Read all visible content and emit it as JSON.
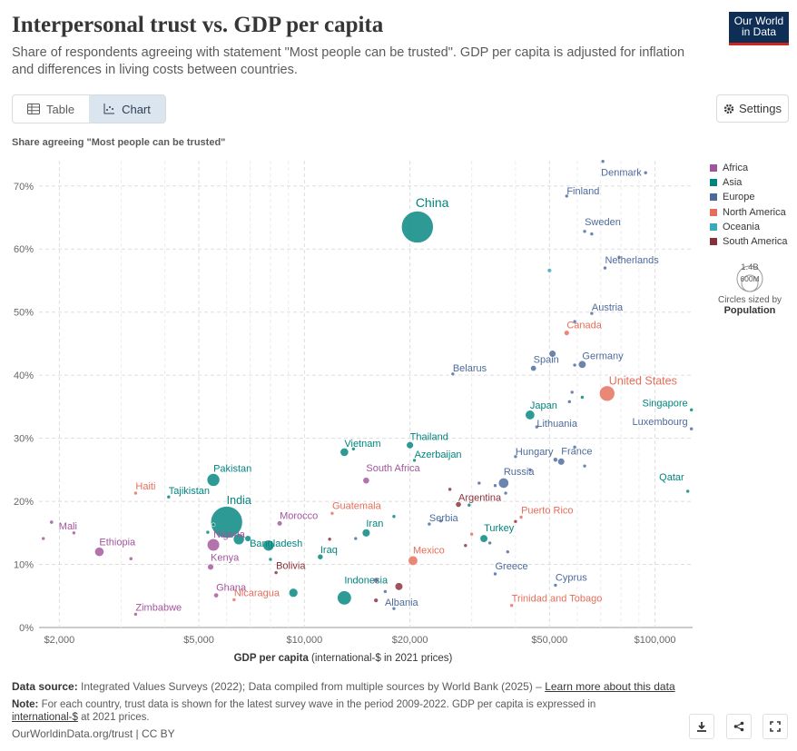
{
  "header": {
    "title": "Interpersonal trust vs. GDP per capita",
    "subtitle": "Share of respondents agreeing with statement \"Most people can be trusted\". GDP per capita is adjusted for inflation and differences in living costs between countries.",
    "logo_line1": "Our World",
    "logo_line2": "in Data"
  },
  "tabs": {
    "table_label": "Table",
    "chart_label": "Chart",
    "active": "chart"
  },
  "settings_label": "Settings",
  "icons": {
    "table": "table-icon",
    "chart": "chart-icon",
    "settings": "gear-icon",
    "download": "download-icon",
    "share": "share-icon",
    "fullscreen": "fullscreen-icon"
  },
  "colors": {
    "Africa": "#a2559c",
    "Asia": "#00847e",
    "Europe": "#4c6a9c",
    "North America": "#e56e5a",
    "Oceania": "#38aaba",
    "South America": "#883039"
  },
  "size_legend": {
    "big": "1.4B",
    "small": "600M",
    "caption": "Circles sized by",
    "caption_bold": "Population"
  },
  "chart_data": {
    "type": "scatter",
    "title": "Interpersonal trust vs. GDP per capita",
    "ylabel": "Share agreeing \"Most people can be trusted\"",
    "xlabel": "GDP per capita",
    "xlabel_suffix": "(international-$ in 2021 prices)",
    "x_scale": "log",
    "xlim": [
      1750,
      128000
    ],
    "ylim": [
      0,
      74
    ],
    "x_ticks": [
      {
        "value": 2000,
        "label": "$2,000"
      },
      {
        "value": 5000,
        "label": "$5,000"
      },
      {
        "value": 10000,
        "label": "$10,000"
      },
      {
        "value": 20000,
        "label": "$20,000"
      },
      {
        "value": 50000,
        "label": "$50,000"
      },
      {
        "value": 100000,
        "label": "$100,000"
      }
    ],
    "y_ticks": [
      {
        "value": 0,
        "label": "0%"
      },
      {
        "value": 10,
        "label": "10%"
      },
      {
        "value": 20,
        "label": "20%"
      },
      {
        "value": 30,
        "label": "30%"
      },
      {
        "value": 40,
        "label": "40%"
      },
      {
        "value": 50,
        "label": "50%"
      },
      {
        "value": 60,
        "label": "60%"
      },
      {
        "value": 70,
        "label": "70%"
      }
    ],
    "x_minor_gridlines": [
      3000,
      4000,
      6000,
      7000,
      8000,
      9000,
      30000,
      40000,
      60000,
      70000,
      80000,
      90000
    ],
    "grid": true,
    "legend_position": "right",
    "legend": [
      "Africa",
      "Asia",
      "Europe",
      "North America",
      "Oceania",
      "South America"
    ],
    "points": [
      {
        "name": "Denmark",
        "x": 71000,
        "y": 73.9,
        "region": "Europe",
        "pop": 5.9,
        "label": "Denmark",
        "lx": -2,
        "ly": 16,
        "anchor": "start"
      },
      {
        "name": "Norway",
        "x": 94000,
        "y": 72.1,
        "region": "Europe",
        "pop": 5.4
      },
      {
        "name": "Finland",
        "x": 56000,
        "y": 68.4,
        "region": "Europe",
        "pop": 5.5,
        "label": "Finland",
        "lx": 0,
        "ly": -2,
        "anchor": "start"
      },
      {
        "name": "China",
        "x": 21000,
        "y": 63.5,
        "region": "Asia",
        "pop": 1412,
        "label": "China",
        "lx": -2,
        "ly": -22,
        "anchor": "start",
        "size": 14
      },
      {
        "name": "Sweden",
        "x": 63000,
        "y": 62.8,
        "region": "Europe",
        "pop": 10.5,
        "label": "Sweden",
        "lx": 0,
        "ly": -7,
        "anchor": "start"
      },
      {
        "name": "Norway2",
        "x": 66000,
        "y": 62.4,
        "region": "Europe",
        "pop": 2
      },
      {
        "name": "Australia",
        "x": 50000,
        "y": 56.6,
        "region": "Oceania",
        "pop": 26
      },
      {
        "name": "Netherlands",
        "x": 72000,
        "y": 57,
        "region": "Europe",
        "pop": 17.6,
        "label": "Netherlands",
        "lx": 0,
        "ly": -5,
        "anchor": "start"
      },
      {
        "name": "Switzerland",
        "x": 79000,
        "y": 58.7,
        "region": "Europe",
        "pop": 8.7
      },
      {
        "name": "Austria",
        "x": 66000,
        "y": 49.8,
        "region": "Europe",
        "pop": 9,
        "label": "Austria",
        "lx": 0,
        "ly": -3,
        "anchor": "start"
      },
      {
        "name": "Iceland",
        "x": 59000,
        "y": 48.5,
        "region": "Europe",
        "pop": 2
      },
      {
        "name": "Canada",
        "x": 56000,
        "y": 46.7,
        "region": "North America",
        "pop": 38,
        "label": "Canada",
        "lx": 0,
        "ly": -5,
        "anchor": "start"
      },
      {
        "name": "United Kingdom",
        "x": 51000,
        "y": 43.4,
        "region": "Europe",
        "pop": 67
      },
      {
        "name": "Germany",
        "x": 62000,
        "y": 41.7,
        "region": "Europe",
        "pop": 83,
        "label": "Germany",
        "lx": 0,
        "ly": -6,
        "anchor": "start"
      },
      {
        "name": "Ireland2",
        "x": 59000,
        "y": 41.6,
        "region": "Europe",
        "pop": 5
      },
      {
        "name": "Spain",
        "x": 45000,
        "y": 41.1,
        "region": "Europe",
        "pop": 47,
        "label": "Spain",
        "lx": 0,
        "ly": -6,
        "anchor": "start"
      },
      {
        "name": "Belarus",
        "x": 26500,
        "y": 40.2,
        "region": "Europe",
        "pop": 9.4,
        "label": "Belarus",
        "lx": 0,
        "ly": -3,
        "anchor": "start"
      },
      {
        "name": "United States",
        "x": 73000,
        "y": 37.1,
        "region": "North America",
        "pop": 332,
        "label": "United States",
        "lx": 2,
        "ly": -10,
        "anchor": "start",
        "size": 12.5
      },
      {
        "name": "Belgium2",
        "x": 58000,
        "y": 37.3,
        "region": "Europe",
        "pop": 2
      },
      {
        "name": "Singapore2",
        "x": 62000,
        "y": 36.5,
        "region": "Asia",
        "pop": 2
      },
      {
        "name": "Japan",
        "x": 44000,
        "y": 33.7,
        "region": "Asia",
        "pop": 125,
        "label": "Japan",
        "lx": 0,
        "ly": -7,
        "anchor": "start"
      },
      {
        "name": "Lithuania",
        "x": 46000,
        "y": 31.8,
        "region": "Europe",
        "pop": 2.8,
        "label": "Lithuania",
        "lx": 0,
        "ly": 0,
        "anchor": "start"
      },
      {
        "name": "Estonia",
        "x": 57000,
        "y": 35.8,
        "region": "Europe",
        "pop": 1.3
      },
      {
        "name": "Singapore",
        "x": 127000,
        "y": 34.5,
        "region": "Asia",
        "pop": 5.5,
        "label": "Singapore",
        "lx": -4,
        "ly": -4,
        "anchor": "end"
      },
      {
        "name": "Luxembourg",
        "x": 127000,
        "y": 31.5,
        "region": "Europe",
        "pop": 0.6,
        "label": "Luxembourg",
        "lx": -4,
        "ly": -4,
        "anchor": "end"
      },
      {
        "name": "Thailand",
        "x": 20000,
        "y": 28.9,
        "region": "Asia",
        "pop": 70,
        "label": "Thailand",
        "lx": 0,
        "ly": -6,
        "anchor": "start"
      },
      {
        "name": "Vietnam",
        "x": 13000,
        "y": 27.8,
        "region": "Asia",
        "pop": 98,
        "label": "Vietnam",
        "lx": 0,
        "ly": -6,
        "anchor": "start"
      },
      {
        "name": "Vietnam2",
        "x": 13800,
        "y": 28.3,
        "region": "Asia",
        "pop": 2
      },
      {
        "name": "Azerbaijan",
        "x": 20600,
        "y": 26.5,
        "region": "Asia",
        "pop": 10,
        "label": "Azerbaijan",
        "lx": 0,
        "ly": -3,
        "anchor": "start"
      },
      {
        "name": "Hungary",
        "x": 40000,
        "y": 27.1,
        "region": "Europe",
        "pop": 9.7,
        "label": "Hungary",
        "lx": 0,
        "ly": -2,
        "anchor": "start"
      },
      {
        "name": "Czechia2",
        "x": 59000,
        "y": 28.6,
        "region": "Europe",
        "pop": 2
      },
      {
        "name": "France",
        "x": 54000,
        "y": 26.3,
        "region": "Europe",
        "pop": 68,
        "label": "France",
        "lx": 0,
        "ly": -8,
        "anchor": "start"
      },
      {
        "name": "France2",
        "x": 52000,
        "y": 26.6,
        "region": "Europe",
        "pop": 30
      },
      {
        "name": "Italy2",
        "x": 63000,
        "y": 25.6,
        "region": "Europe",
        "pop": 3
      },
      {
        "name": "Croatia2",
        "x": 44000,
        "y": 25,
        "region": "Europe",
        "pop": 3
      },
      {
        "name": "Pakistan",
        "x": 5500,
        "y": 23.4,
        "region": "Asia",
        "pop": 225,
        "label": "Pakistan",
        "lx": 0,
        "ly": -9,
        "anchor": "start"
      },
      {
        "name": "South Africa",
        "x": 15000,
        "y": 23.3,
        "region": "Africa",
        "pop": 60,
        "label": "South Africa",
        "lx": 0,
        "ly": -10,
        "anchor": "start"
      },
      {
        "name": "Russia",
        "x": 37000,
        "y": 22.9,
        "region": "Europe",
        "pop": 145,
        "label": "Russia",
        "lx": 0,
        "ly": -9,
        "anchor": "start"
      },
      {
        "name": "Slovakia2",
        "x": 35000,
        "y": 22.5,
        "region": "Europe",
        "pop": 3
      },
      {
        "name": "Serbia2",
        "x": 31500,
        "y": 22.9,
        "region": "Europe",
        "pop": 3
      },
      {
        "name": "Romania2",
        "x": 37500,
        "y": 21.3,
        "region": "Europe",
        "pop": 3
      },
      {
        "name": "Argentina2",
        "x": 26000,
        "y": 21.9,
        "region": "South America",
        "pop": 3
      },
      {
        "name": "Haiti",
        "x": 3300,
        "y": 21.3,
        "region": "North America",
        "pop": 11.5,
        "label": "Haiti",
        "lx": 0,
        "ly": -4,
        "anchor": "start"
      },
      {
        "name": "Tajikistan",
        "x": 4100,
        "y": 20.7,
        "region": "Asia",
        "pop": 9.7,
        "label": "Tajikistan",
        "lx": 0,
        "ly": -3,
        "anchor": "start"
      },
      {
        "name": "India",
        "x": 6000,
        "y": 16.7,
        "region": "Asia",
        "pop": 1408,
        "label": "India",
        "lx": 0,
        "ly": -20,
        "anchor": "start",
        "size": 12.5
      },
      {
        "name": "Argentina",
        "x": 27500,
        "y": 19.5,
        "region": "South America",
        "pop": 45,
        "label": "Argentina",
        "lx": 0,
        "ly": -4,
        "anchor": "start"
      },
      {
        "name": "Armenia2",
        "x": 29500,
        "y": 19.4,
        "region": "Asia",
        "pop": 3
      },
      {
        "name": "Guatemala",
        "x": 12000,
        "y": 18.1,
        "region": "North America",
        "pop": 17,
        "label": "Guatemala",
        "lx": 0,
        "ly": -5,
        "anchor": "start"
      },
      {
        "name": "Morocco",
        "x": 8500,
        "y": 16.5,
        "region": "Africa",
        "pop": 37,
        "label": "Morocco",
        "lx": 0,
        "ly": -5,
        "anchor": "start"
      },
      {
        "name": "Kyrgyz2",
        "x": 5500,
        "y": 16.3,
        "region": "Asia",
        "pop": 3
      },
      {
        "name": "Kazakh2",
        "x": 18000,
        "y": 17.6,
        "region": "Asia",
        "pop": 3
      },
      {
        "name": "Puerto Rico",
        "x": 41500,
        "y": 17.5,
        "region": "North America",
        "pop": 3.2,
        "label": "Puerto Rico",
        "lx": 0,
        "ly": -4,
        "anchor": "start"
      },
      {
        "name": "Chile2",
        "x": 40000,
        "y": 16.8,
        "region": "South America",
        "pop": 3
      },
      {
        "name": "Mali",
        "x": 1900,
        "y": 16.7,
        "region": "Africa",
        "pop": 21,
        "label": "Mali",
        "lx": 8,
        "ly": 8,
        "anchor": "start"
      },
      {
        "name": "Serbia",
        "x": 22700,
        "y": 16.4,
        "region": "Europe",
        "pop": 6.8,
        "label": "Serbia",
        "lx": 0,
        "ly": -3,
        "anchor": "start"
      },
      {
        "name": "Bosnia2",
        "x": 24500,
        "y": 16.9,
        "region": "Europe",
        "pop": 3
      },
      {
        "name": "Iran",
        "x": 15000,
        "y": 15,
        "region": "Asia",
        "pop": 88,
        "label": "Iran",
        "lx": 0,
        "ly": -7,
        "anchor": "start"
      },
      {
        "name": "Nigeria",
        "x": 5500,
        "y": 13.1,
        "region": "Africa",
        "pop": 213,
        "label": "Nigeria",
        "lx": 0,
        "ly": -8,
        "anchor": "start"
      },
      {
        "name": "Bangladesh",
        "x": 6500,
        "y": 14,
        "region": "Asia",
        "pop": 169,
        "label": "Bangladesh",
        "lx": 12,
        "ly": 8,
        "anchor": "start"
      },
      {
        "name": "Kyrgyz3",
        "x": 5300,
        "y": 15.1,
        "region": "Asia",
        "pop": 6.7
      },
      {
        "name": "Myanmar2",
        "x": 6900,
        "y": 14.1,
        "region": "Asia",
        "pop": 54
      },
      {
        "name": "Turkey",
        "x": 32500,
        "y": 14.1,
        "region": "Asia",
        "pop": 85,
        "label": "Turkey",
        "lx": 0,
        "ly": -8,
        "anchor": "start"
      },
      {
        "name": "Bulgaria2",
        "x": 33800,
        "y": 13.4,
        "region": "Europe",
        "pop": 3
      },
      {
        "name": "Ecuador2",
        "x": 11800,
        "y": 14,
        "region": "South America",
        "pop": 3
      },
      {
        "name": "Mexico2",
        "x": 30000,
        "y": 14.8,
        "region": "North America",
        "pop": 3
      },
      {
        "name": "Colombia2",
        "x": 28800,
        "y": 13,
        "region": "South America",
        "pop": 3
      },
      {
        "name": "Mexico",
        "x": 20400,
        "y": 10.6,
        "region": "North America",
        "pop": 127,
        "label": "Mexico",
        "lx": 0,
        "ly": -8,
        "anchor": "start"
      },
      {
        "name": "Ethiopia",
        "x": 2600,
        "y": 12,
        "region": "Africa",
        "pop": 120,
        "label": "Ethiopia",
        "lx": 0,
        "ly": -7,
        "anchor": "start"
      },
      {
        "name": "Ethiopia2",
        "x": 2200,
        "y": 15,
        "region": "Africa",
        "pop": 3
      },
      {
        "name": "Bangladesh2",
        "x": 7900,
        "y": 13,
        "region": "Asia",
        "pop": 169
      },
      {
        "name": "Iraq",
        "x": 11100,
        "y": 11.2,
        "region": "Asia",
        "pop": 43,
        "label": "Iraq",
        "lx": 0,
        "ly": -4,
        "anchor": "start"
      },
      {
        "name": "Moldova2",
        "x": 14000,
        "y": 14.1,
        "region": "Europe",
        "pop": 3
      },
      {
        "name": "Kenya",
        "x": 5400,
        "y": 9.6,
        "region": "Africa",
        "pop": 53,
        "label": "Kenya",
        "lx": 0,
        "ly": -7,
        "anchor": "start"
      },
      {
        "name": "Zambia2",
        "x": 3200,
        "y": 10.9,
        "region": "Africa",
        "pop": 19
      },
      {
        "name": "Lebanon2",
        "x": 8000,
        "y": 10.8,
        "region": "Asia",
        "pop": 5
      },
      {
        "name": "Bolivia",
        "x": 8300,
        "y": 8.7,
        "region": "South America",
        "pop": 12,
        "label": "Bolivia",
        "lx": 0,
        "ly": -4,
        "anchor": "start"
      },
      {
        "name": "Greece",
        "x": 35000,
        "y": 8.5,
        "region": "Europe",
        "pop": 10.6,
        "label": "Greece",
        "lx": 0,
        "ly": -5,
        "anchor": "start"
      },
      {
        "name": "Greece2",
        "x": 38000,
        "y": 12,
        "region": "Europe",
        "pop": 3
      },
      {
        "name": "Tunisia2",
        "x": 16000,
        "y": 7.5,
        "region": "Africa",
        "pop": 40
      },
      {
        "name": "Indonesia",
        "x": 13000,
        "y": 4.7,
        "region": "Asia",
        "pop": 275,
        "label": "Indonesia",
        "lx": 0,
        "ly": -16,
        "anchor": "start"
      },
      {
        "name": "Peru",
        "x": 18600,
        "y": 6.5,
        "region": "South America",
        "pop": 85
      },
      {
        "name": "Ghana",
        "x": 5600,
        "y": 5.1,
        "region": "Africa",
        "pop": 33,
        "label": "Ghana",
        "lx": 0,
        "ly": -5,
        "anchor": "start"
      },
      {
        "name": "Nicaragua",
        "x": 6300,
        "y": 4.4,
        "region": "North America",
        "pop": 6.8,
        "label": "Nicaragua",
        "lx": 0,
        "ly": -4,
        "anchor": "start"
      },
      {
        "name": "Philippines",
        "x": 9300,
        "y": 5.5,
        "region": "Asia",
        "pop": 112
      },
      {
        "name": "Cyprus",
        "x": 52000,
        "y": 6.7,
        "region": "Europe",
        "pop": 1.2,
        "label": "Cyprus",
        "lx": 0,
        "ly": -5,
        "anchor": "start"
      },
      {
        "name": "Montenegro",
        "x": 17000,
        "y": 5.7,
        "region": "Europe",
        "pop": 3
      },
      {
        "name": "Albania",
        "x": 18000,
        "y": 3,
        "region": "Europe",
        "pop": 2.8,
        "label": "Albania",
        "lx": -10,
        "ly": -3,
        "anchor": "start"
      },
      {
        "name": "Venezuela2",
        "x": 16000,
        "y": 4.3,
        "region": "South America",
        "pop": 28
      },
      {
        "name": "Trinidad and Tobago",
        "x": 39000,
        "y": 3.5,
        "region": "North America",
        "pop": 1.5,
        "label": "Trinidad and Tobago",
        "lx": 0,
        "ly": -4,
        "anchor": "start"
      },
      {
        "name": "Zimbabwe",
        "x": 3300,
        "y": 2.1,
        "region": "Africa",
        "pop": 16,
        "label": "Zimbabwe",
        "lx": 0,
        "ly": -4,
        "anchor": "start"
      },
      {
        "name": "Zambia3",
        "x": 1800,
        "y": 14.1,
        "region": "Africa",
        "pop": 3
      },
      {
        "name": "Qatar",
        "x": 124000,
        "y": 21.6,
        "region": "Asia",
        "pop": 2.7,
        "label": "Qatar",
        "lx": -4,
        "ly": -12,
        "anchor": "end"
      }
    ]
  },
  "footer": {
    "source_label": "Data source:",
    "source_text": "Integrated Values Surveys (2022); Data compiled from multiple sources by World Bank (2025) –",
    "learn_more": "Learn more about this data",
    "note_label": "Note:",
    "note_text": "For each country, trust data is shown for the latest survey wave in the period 2009-2022. GDP per capita is expressed in",
    "note_link": "international-$",
    "note_text2": "at 2021 prices.",
    "credit": "OurWorldinData.org/trust | CC BY"
  }
}
